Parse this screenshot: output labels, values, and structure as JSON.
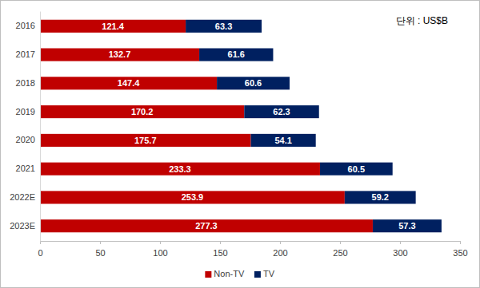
{
  "chart_data": {
    "type": "bar",
    "orientation": "horizontal",
    "stacked": true,
    "data_labels": true,
    "grid": false,
    "legend": "bottom",
    "annotation": "단위 : US$B",
    "categories": [
      "2016",
      "2017",
      "2018",
      "2019",
      "2020",
      "2021",
      "2022E",
      "2023E"
    ],
    "series": [
      {
        "name": "Non-TV",
        "color": "#c00000",
        "values": [
          121.4,
          132.7,
          147.4,
          170.2,
          175.7,
          233.3,
          253.9,
          277.3
        ]
      },
      {
        "name": "TV",
        "color": "#002060",
        "values": [
          63.3,
          61.6,
          60.6,
          62.3,
          54.1,
          60.5,
          59.2,
          57.3
        ]
      }
    ],
    "xlim": [
      0,
      350
    ],
    "xticks": [
      0,
      50,
      100,
      150,
      200,
      250,
      300,
      350
    ]
  }
}
